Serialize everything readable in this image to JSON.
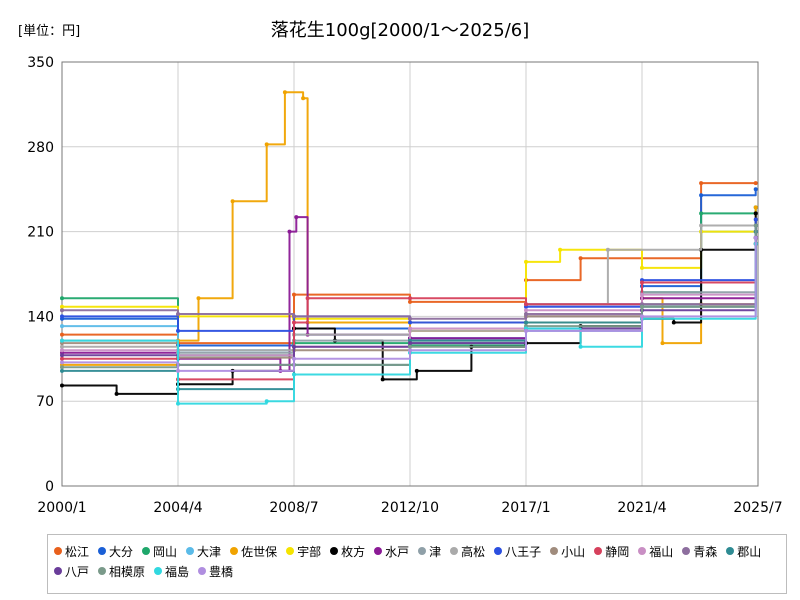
{
  "chart_data": {
    "type": "line",
    "title": "落花生100g[2000/1～2025/6]",
    "unit_label": "[単位：円]",
    "xlabel": "",
    "ylabel": "",
    "x_ticks": [
      "2000/1",
      "2004/4",
      "2008/7",
      "2012/10",
      "2017/1",
      "2021/4",
      "2025/7"
    ],
    "y_ticks": [
      0,
      70,
      140,
      210,
      280,
      350
    ],
    "xlim": [
      "2000/1",
      "2025/7"
    ],
    "ylim": [
      0,
      350
    ],
    "grid": true,
    "legend_position": "bottom",
    "series": [
      {
        "name": "松江",
        "color": "#e8601c",
        "points": [
          [
            "2000/1",
            125
          ],
          [
            "2004/4",
            118
          ],
          [
            "2008/7",
            158
          ],
          [
            "2012/10",
            152
          ],
          [
            "2017/1",
            170
          ],
          [
            "2019/1",
            188
          ],
          [
            "2023/6",
            250
          ],
          [
            "2025/6",
            250
          ]
        ]
      },
      {
        "name": "大分",
        "color": "#1a5fd6",
        "points": [
          [
            "2000/1",
            138
          ],
          [
            "2004/4",
            116
          ],
          [
            "2008/7",
            130
          ],
          [
            "2012/10",
            122
          ],
          [
            "2017/1",
            150
          ],
          [
            "2021/4",
            165
          ],
          [
            "2023/6",
            240
          ],
          [
            "2025/6",
            245
          ]
        ]
      },
      {
        "name": "岡山",
        "color": "#1fa76b",
        "points": [
          [
            "2000/1",
            155
          ],
          [
            "2004/4",
            108
          ],
          [
            "2008/7",
            118
          ],
          [
            "2012/10",
            116
          ],
          [
            "2017/1",
            135
          ],
          [
            "2021/4",
            160
          ],
          [
            "2023/6",
            225
          ],
          [
            "2025/6",
            230
          ]
        ]
      },
      {
        "name": "大津",
        "color": "#5bbbe8",
        "points": [
          [
            "2000/1",
            132
          ],
          [
            "2004/4",
            112
          ],
          [
            "2008/7",
            125
          ],
          [
            "2012/10",
            118
          ],
          [
            "2017/1",
            128
          ],
          [
            "2021/4",
            150
          ],
          [
            "2023/6",
            210
          ],
          [
            "2025/6",
            215
          ]
        ]
      },
      {
        "name": "佐世保",
        "color": "#f0a300",
        "points": [
          [
            "2000/1",
            100
          ],
          [
            "2004/4",
            120
          ],
          [
            "2005/1",
            155
          ],
          [
            "2006/4",
            235
          ],
          [
            "2007/7",
            282
          ],
          [
            "2008/3",
            325
          ],
          [
            "2008/11",
            320
          ],
          [
            "2009/1",
            135
          ],
          [
            "2012/10",
            128
          ],
          [
            "2017/1",
            135
          ],
          [
            "2021/4",
            155
          ],
          [
            "2022/1",
            118
          ],
          [
            "2023/6",
            150
          ],
          [
            "2025/6",
            230
          ]
        ]
      },
      {
        "name": "宇部",
        "color": "#f5e400",
        "points": [
          [
            "2000/1",
            148
          ],
          [
            "2004/4",
            140
          ],
          [
            "2008/7",
            138
          ],
          [
            "2012/10",
            135
          ],
          [
            "2017/1",
            185
          ],
          [
            "2018/4",
            195
          ],
          [
            "2021/4",
            180
          ],
          [
            "2023/6",
            210
          ],
          [
            "2025/6",
            205
          ]
        ]
      },
      {
        "name": "枚方",
        "color": "#000000",
        "points": [
          [
            "2000/1",
            83
          ],
          [
            "2002/1",
            76
          ],
          [
            "2004/4",
            84
          ],
          [
            "2006/4",
            95
          ],
          [
            "2008/7",
            130
          ],
          [
            "2010/1",
            120
          ],
          [
            "2011/10",
            88
          ],
          [
            "2013/1",
            95
          ],
          [
            "2015/1",
            115
          ],
          [
            "2017/1",
            118
          ],
          [
            "2019/1",
            132
          ],
          [
            "2021/4",
            138
          ],
          [
            "2022/6",
            135
          ],
          [
            "2023/6",
            195
          ],
          [
            "2025/6",
            225
          ]
        ]
      },
      {
        "name": "水戸",
        "color": "#8b1a96",
        "points": [
          [
            "2000/1",
            110
          ],
          [
            "2004/4",
            105
          ],
          [
            "2008/1",
            95
          ],
          [
            "2008/5",
            210
          ],
          [
            "2008/8",
            222
          ],
          [
            "2009/1",
            125
          ],
          [
            "2012/10",
            122
          ],
          [
            "2017/1",
            140
          ],
          [
            "2021/4",
            155
          ],
          [
            "2025/6",
            205
          ]
        ]
      },
      {
        "name": "津",
        "color": "#8fa0a8",
        "points": [
          [
            "2000/1",
            120
          ],
          [
            "2004/4",
            110
          ],
          [
            "2008/7",
            120
          ],
          [
            "2012/10",
            118
          ],
          [
            "2017/1",
            140
          ],
          [
            "2021/4",
            160
          ],
          [
            "2025/6",
            200
          ]
        ]
      },
      {
        "name": "高松",
        "color": "#aaaaaa",
        "points": [
          [
            "2000/1",
            115
          ],
          [
            "2004/4",
            112
          ],
          [
            "2008/7",
            125
          ],
          [
            "2012/10",
            128
          ],
          [
            "2017/1",
            150
          ],
          [
            "2020/1",
            195
          ],
          [
            "2023/6",
            215
          ],
          [
            "2025/6",
            210
          ]
        ]
      },
      {
        "name": "八王子",
        "color": "#2b4fe0",
        "points": [
          [
            "2000/1",
            140
          ],
          [
            "2004/4",
            128
          ],
          [
            "2008/7",
            140
          ],
          [
            "2012/10",
            135
          ],
          [
            "2017/1",
            148
          ],
          [
            "2021/4",
            170
          ],
          [
            "2025/6",
            220
          ]
        ]
      },
      {
        "name": "小山",
        "color": "#a08c7d",
        "points": [
          [
            "2000/1",
            118
          ],
          [
            "2004/4",
            106
          ],
          [
            "2008/7",
            112
          ],
          [
            "2012/10",
            120
          ],
          [
            "2017/1",
            140
          ],
          [
            "2021/4",
            150
          ],
          [
            "2025/6",
            205
          ]
        ]
      },
      {
        "name": "静岡",
        "color": "#d6405c",
        "points": [
          [
            "2000/1",
            105
          ],
          [
            "2004/4",
            88
          ],
          [
            "2008/7",
            135
          ],
          [
            "2009/1",
            155
          ],
          [
            "2012/10",
            155
          ],
          [
            "2017/1",
            150
          ],
          [
            "2021/4",
            168
          ],
          [
            "2025/6",
            200
          ]
        ]
      },
      {
        "name": "福山",
        "color": "#c98fc4",
        "points": [
          [
            "2000/1",
            112
          ],
          [
            "2004/4",
            108
          ],
          [
            "2008/7",
            115
          ],
          [
            "2012/10",
            130
          ],
          [
            "2017/1",
            145
          ],
          [
            "2021/4",
            158
          ],
          [
            "2025/6",
            210
          ]
        ]
      },
      {
        "name": "青森",
        "color": "#8d6e9e",
        "points": [
          [
            "2000/1",
            145
          ],
          [
            "2004/4",
            142
          ],
          [
            "2008/7",
            140
          ],
          [
            "2012/10",
            138
          ],
          [
            "2017/1",
            142
          ],
          [
            "2021/4",
            150
          ],
          [
            "2025/6",
            200
          ]
        ]
      },
      {
        "name": "郡山",
        "color": "#2e8b93",
        "points": [
          [
            "2000/1",
            95
          ],
          [
            "2004/4",
            80
          ],
          [
            "2008/7",
            100
          ],
          [
            "2012/10",
            120
          ],
          [
            "2017/1",
            135
          ],
          [
            "2021/4",
            148
          ],
          [
            "2025/6",
            210
          ]
        ]
      },
      {
        "name": "八戸",
        "color": "#6a3d9a",
        "points": [
          [
            "2000/1",
            108
          ],
          [
            "2004/4",
            100
          ],
          [
            "2008/7",
            115
          ],
          [
            "2012/10",
            118
          ],
          [
            "2017/1",
            130
          ],
          [
            "2021/4",
            145
          ],
          [
            "2025/6",
            205
          ]
        ]
      },
      {
        "name": "相模原",
        "color": "#7a9a8a",
        "points": [
          [
            "2000/1",
            98
          ],
          [
            "2004/4",
            100
          ],
          [
            "2008/7",
            100
          ],
          [
            "2012/10",
            115
          ],
          [
            "2017/1",
            132
          ],
          [
            "2021/4",
            148
          ],
          [
            "2025/6",
            215
          ]
        ]
      },
      {
        "name": "福島",
        "color": "#31d8e0",
        "points": [
          [
            "2000/1",
            120
          ],
          [
            "2004/4",
            68
          ],
          [
            "2007/7",
            70
          ],
          [
            "2008/7",
            92
          ],
          [
            "2012/10",
            110
          ],
          [
            "2017/1",
            130
          ],
          [
            "2019/1",
            115
          ],
          [
            "2021/4",
            138
          ],
          [
            "2025/6",
            200
          ]
        ]
      },
      {
        "name": "豊橋",
        "color": "#b08ee0",
        "points": [
          [
            "2000/1",
            102
          ],
          [
            "2004/4",
            95
          ],
          [
            "2008/7",
            105
          ],
          [
            "2012/10",
            112
          ],
          [
            "2017/1",
            128
          ],
          [
            "2021/4",
            140
          ],
          [
            "2025/6",
            205
          ]
        ]
      }
    ]
  }
}
